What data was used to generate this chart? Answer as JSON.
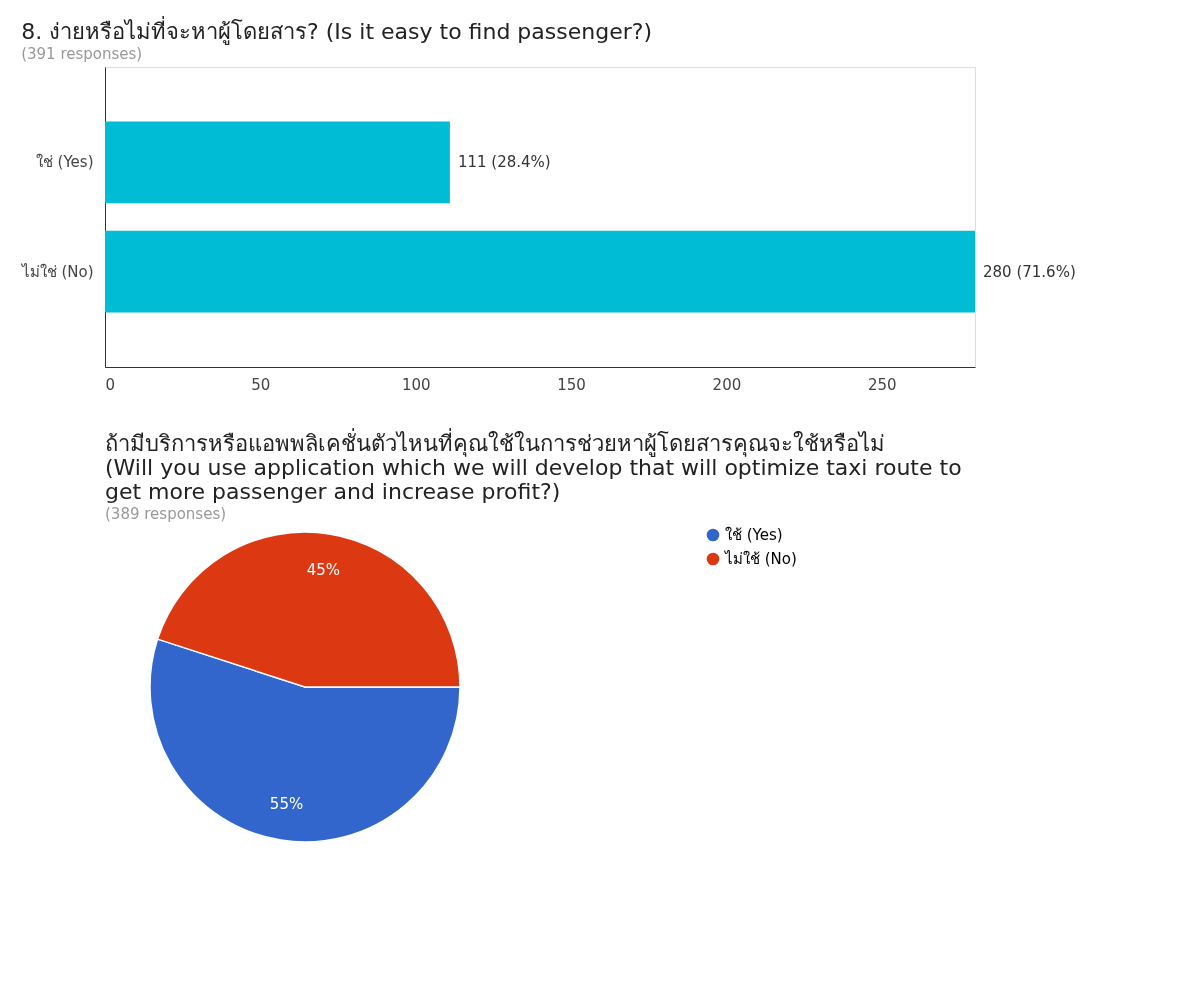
{
  "chart_data": [
    {
      "type": "bar",
      "orientation": "horizontal",
      "title": "8. ง่ายหรือไม่ที่จะหาผู้โดยสาร? (Is it easy to find passenger?)",
      "subtitle": "(391 responses)",
      "categories": [
        "ใช่ (Yes)",
        "ไม่ใช่ (No)"
      ],
      "values": [
        111,
        280
      ],
      "color": "#00bcd4",
      "value_labels": [
        "111 (28.4%)",
        "280 (71.6%)"
      ],
      "xlim": [
        0,
        280
      ],
      "xticks": [
        0,
        50,
        100,
        150,
        200,
        250
      ],
      "grid": false
    },
    {
      "type": "pie",
      "title": "ถ้ามีบริการหรือแอพพลิเคชั่นตัวไหนที่คุณใช้ในการช่วยหาผู้โดยสารคุณจะใช้หรือไม่\n(Will you use application which we will develop that will optimize taxi route to\nget more passenger and increase profit?)",
      "subtitle": "(389 responses)",
      "categories": [
        "ใช้ (Yes)",
        "ไม่ใช้ (No)"
      ],
      "values": [
        55,
        45
      ],
      "colors": [
        "#3366cc",
        "#dc3912"
      ],
      "value_labels": [
        "55%",
        "45%"
      ],
      "legend": "right"
    }
  ]
}
